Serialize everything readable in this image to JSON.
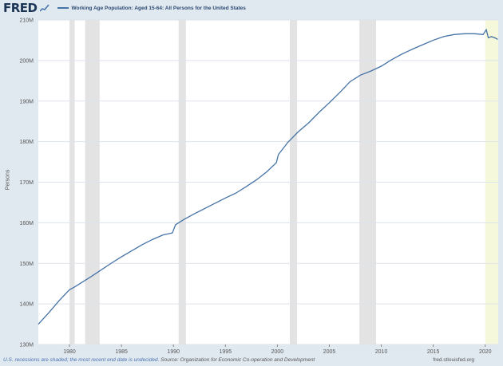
{
  "header": {
    "logo": "FRED",
    "legend_label": "Working Age Population: Aged 15-64: All Persons for the United States"
  },
  "footer": {
    "note_italic": "U.S. recessions are shaded; the most recent end date is undecided.",
    "source": "Source: Organization for Economic Co-operation and Development",
    "site": "fred.stlouisfed.org"
  },
  "colors": {
    "line": "#4572a7",
    "recession": "#e3e3e3",
    "latest_shade": "#f6f8dc",
    "plot_bg": "#ffffff",
    "grid": "#dde3ea"
  },
  "chart_data": {
    "type": "line",
    "title": "",
    "xlabel": "",
    "ylabel": "Persons",
    "xlim": [
      1977,
      2021.25
    ],
    "ylim": [
      130,
      210
    ],
    "y_ticks": [
      130,
      140,
      150,
      160,
      170,
      180,
      190,
      200,
      210
    ],
    "y_tick_labels": [
      "130M",
      "140M",
      "150M",
      "160M",
      "170M",
      "180M",
      "190M",
      "200M",
      "210M"
    ],
    "x_ticks": [
      1980,
      1985,
      1990,
      1995,
      2000,
      2005,
      2010,
      2015,
      2020
    ],
    "x_tick_labels": [
      "1980",
      "1985",
      "1990",
      "1995",
      "2000",
      "2005",
      "2010",
      "2015",
      "2020"
    ],
    "grid": "horizontal",
    "recessions": [
      [
        1980.0,
        1980.5
      ],
      [
        1981.5,
        1982.9
      ],
      [
        1990.5,
        1991.2
      ],
      [
        2001.2,
        2001.9
      ],
      [
        2007.9,
        2009.5
      ],
      [
        2020.0,
        2021.25
      ]
    ],
    "series": [
      {
        "name": "Working Age Population: Aged 15-64: All Persons for the United States",
        "x": [
          1977.0,
          1978.0,
          1979.0,
          1980.0,
          1980.5,
          1981.0,
          1982.0,
          1983.0,
          1984.0,
          1985.0,
          1986.0,
          1987.0,
          1988.0,
          1989.0,
          1989.9,
          1990.2,
          1991.0,
          1992.0,
          1993.0,
          1994.0,
          1995.0,
          1996.0,
          1997.0,
          1998.0,
          1999.0,
          1999.9,
          2000.1,
          2001.0,
          2002.0,
          2003.0,
          2004.0,
          2005.0,
          2006.0,
          2007.0,
          2008.0,
          2009.0,
          2010.0,
          2011.0,
          2012.0,
          2013.0,
          2014.0,
          2015.0,
          2016.0,
          2017.0,
          2018.0,
          2019.0,
          2019.8,
          2020.1,
          2020.3,
          2020.6,
          2021.0,
          2021.2
        ],
        "values": [
          135.0,
          137.8,
          140.8,
          143.5,
          144.2,
          145.0,
          146.6,
          148.3,
          150.0,
          151.6,
          153.1,
          154.6,
          155.9,
          157.0,
          157.5,
          159.5,
          160.8,
          162.2,
          163.5,
          164.8,
          166.1,
          167.3,
          168.9,
          170.6,
          172.6,
          174.8,
          176.8,
          179.8,
          182.4,
          184.6,
          187.2,
          189.6,
          192.1,
          194.8,
          196.4,
          197.4,
          198.6,
          200.2,
          201.6,
          202.8,
          203.9,
          205.0,
          205.9,
          206.4,
          206.6,
          206.6,
          206.4,
          207.6,
          205.6,
          205.9,
          205.5,
          205.2
        ]
      }
    ]
  }
}
